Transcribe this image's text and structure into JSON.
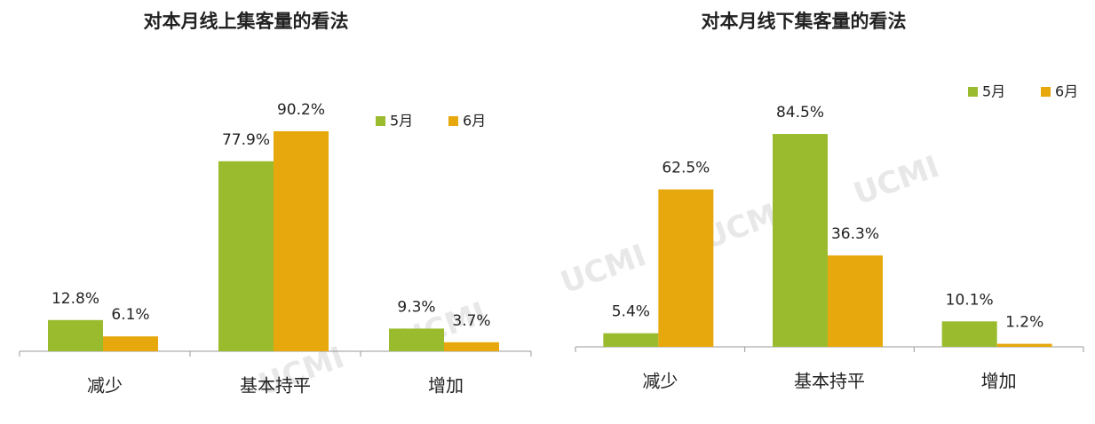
{
  "watermark": "UCMI",
  "chart_data": [
    {
      "type": "bar",
      "title": "对本月线上集客量的看法",
      "categories": [
        "减少",
        "基本持平",
        "增加"
      ],
      "series": [
        {
          "name": "5月",
          "color": "#9bbb2f",
          "values": [
            12.8,
            77.9,
            9.3
          ],
          "value_labels": [
            "12.8%",
            "77.9%",
            "9.3%"
          ]
        },
        {
          "name": "6月",
          "color": "#e6a80c",
          "values": [
            6.1,
            90.2,
            3.7
          ],
          "value_labels": [
            "6.1%",
            "90.2%",
            "3.7%"
          ]
        }
      ],
      "legend": "upper right"
    },
    {
      "type": "bar",
      "title": "对本月线下集客量的看法",
      "categories": [
        "减少",
        "基本持平",
        "增加"
      ],
      "series": [
        {
          "name": "5月",
          "color": "#9bbb2f",
          "values": [
            5.4,
            84.5,
            10.1
          ],
          "value_labels": [
            "5.4%",
            "84.5%",
            "10.1%"
          ]
        },
        {
          "name": "6月",
          "color": "#e6a80c",
          "values": [
            62.5,
            36.3,
            1.2
          ],
          "value_labels": [
            "62.5%",
            "36.3%",
            "1.2%"
          ]
        }
      ],
      "legend": "upper right"
    }
  ]
}
